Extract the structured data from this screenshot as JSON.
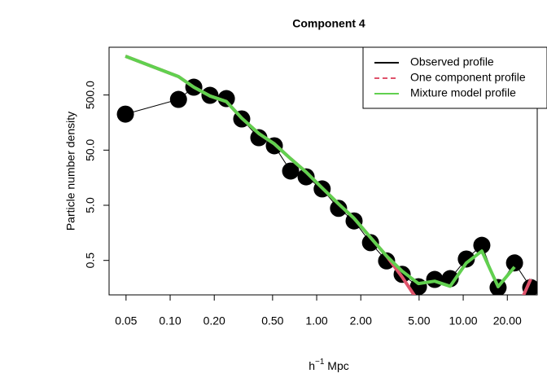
{
  "chart_data": {
    "type": "line",
    "title": "Component 4",
    "xlabel": [
      "h",
      "−1",
      " Mpc"
    ],
    "ylabel": "Particle number density",
    "xlog": true,
    "ylog": true,
    "x": [
      0.0495,
      0.114,
      0.145,
      0.187,
      0.242,
      0.308,
      0.403,
      0.514,
      0.664,
      0.847,
      1.09,
      1.41,
      1.8,
      2.33,
      3.0,
      3.83,
      4.95,
      6.39,
      8.15,
      10.5,
      13.4,
      17.3,
      22.4,
      28.9
    ],
    "series": [
      {
        "name": "Observed profile",
        "color": "#000000",
        "markers": true,
        "values": [
          225,
          416,
          693,
          493,
          430,
          184,
          84,
          60,
          20.9,
          16.4,
          9.9,
          4.4,
          2.6,
          1.05,
          0.49,
          0.28,
          0.167,
          0.226,
          0.234,
          0.53,
          0.94,
          0.161,
          0.45,
          0.161
        ]
      },
      {
        "name": "One component profile",
        "color": "#DF536B",
        "dash": true,
        "values": [
          2524,
          1080,
          693,
          480,
          380,
          190,
          100,
          65,
          35,
          20,
          10.3,
          5.3,
          2.9,
          1.3,
          0.6,
          0.25,
          0.09,
          null,
          null,
          null,
          null,
          null,
          0.05,
          0.23
        ]
      },
      {
        "name": "Mixture model profile",
        "color": "#61D04F",
        "values": [
          2524,
          1080,
          693,
          480,
          380,
          190,
          100,
          65,
          35,
          20,
          10.3,
          5.3,
          2.9,
          1.3,
          0.6,
          0.32,
          0.19,
          0.21,
          0.17,
          0.45,
          0.74,
          0.167,
          0.38,
          null
        ]
      }
    ],
    "xlim": [
      0.0383,
      32.0
    ],
    "ylim": [
      0.1186,
      3671
    ],
    "xticks": [
      {
        "value": 0.05,
        "label": "0.05"
      },
      {
        "value": 0.1,
        "label": "0.10"
      },
      {
        "value": 0.2,
        "label": "0.20"
      },
      {
        "value": 0.5,
        "label": "0.50"
      },
      {
        "value": 1,
        "label": "1.00"
      },
      {
        "value": 2,
        "label": "2.00"
      },
      {
        "value": 5,
        "label": "5.00"
      },
      {
        "value": 10,
        "label": "10.00"
      },
      {
        "value": 20,
        "label": "20.00"
      }
    ],
    "yticks": [
      0.5,
      {
        "value": 5,
        "label": "5.0"
      },
      {
        "value": 50,
        "label": "50.0"
      },
      {
        "value": 500,
        "label": "500.0"
      }
    ],
    "legend": "top-right"
  }
}
